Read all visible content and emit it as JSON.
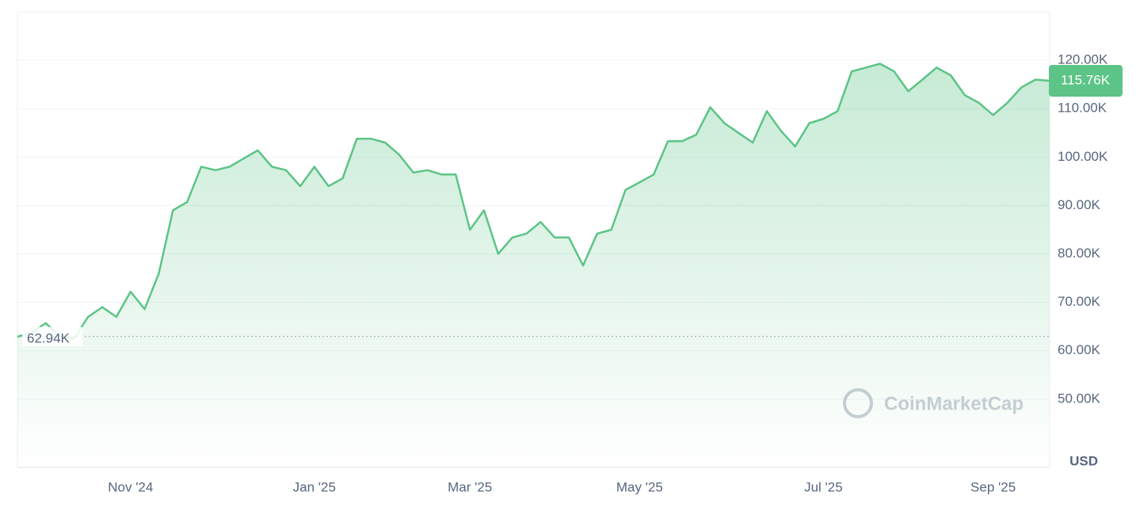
{
  "chart_data": {
    "type": "line",
    "categories": [
      null,
      null,
      null,
      null,
      null,
      null,
      null,
      null,
      "Nov '24",
      null,
      null,
      null,
      null,
      null,
      null,
      null,
      null,
      null,
      null,
      null,
      null,
      "Jan '25",
      null,
      null,
      null,
      null,
      null,
      null,
      null,
      null,
      null,
      null,
      "Mar '25",
      null,
      null,
      null,
      null,
      null,
      null,
      null,
      null,
      null,
      null,
      null,
      "May '25",
      null,
      null,
      null,
      null,
      null,
      null,
      null,
      null,
      null,
      null,
      null,
      null,
      "Jul '25",
      null,
      null,
      null,
      null,
      null,
      null,
      null,
      null,
      null,
      null,
      null,
      "Sep '25",
      null,
      null,
      null,
      null
    ],
    "series": [
      {
        "color": "#5cc486",
        "values": [
          62900,
          63700,
          65700,
          63000,
          62500,
          67000,
          69000,
          67000,
          72200,
          68600,
          76000,
          89000,
          90700,
          98000,
          97300,
          98000,
          99700,
          101400,
          98000,
          97300,
          94000,
          98000,
          94000,
          95600,
          103800,
          103800,
          103000,
          100500,
          96800,
          97300,
          96400,
          96400,
          85000,
          89000,
          80000,
          83400,
          84200,
          86600,
          83400,
          83400,
          77600,
          84200,
          85000,
          93200,
          94800,
          96400,
          103300,
          103300,
          104600,
          110300,
          107000,
          105000,
          103000,
          109500,
          105400,
          102200,
          107000,
          107900,
          109500,
          117700,
          118500,
          119300,
          117700,
          113600,
          116000,
          118500,
          116900,
          112800,
          111200,
          108700,
          111200,
          114400,
          116000,
          115760
        ],
        "value_labels": [
          null,
          null,
          null,
          null,
          null,
          null,
          null,
          null,
          null,
          null,
          null,
          null,
          null,
          null,
          null,
          null,
          null,
          null,
          null,
          null,
          null,
          null,
          null,
          null,
          null,
          null,
          null,
          null,
          null,
          null,
          null,
          null,
          null,
          null,
          null,
          null,
          null,
          null,
          null,
          null,
          null,
          null,
          null,
          null,
          null,
          null,
          null,
          null,
          null,
          null,
          null,
          null,
          null,
          null,
          null,
          null,
          null,
          null,
          null,
          null,
          null,
          null,
          null,
          null,
          null,
          null,
          null,
          null,
          null,
          null,
          null,
          null,
          null,
          "115.76K"
        ]
      }
    ],
    "ylim": [
      35900,
      130000
    ],
    "yticks": [
      {
        "value": 50000,
        "label": "50.00K"
      },
      {
        "value": 60000,
        "label": "60.00K"
      },
      {
        "value": 70000,
        "label": "70.00K"
      },
      {
        "value": 80000,
        "label": "80.00K"
      },
      {
        "value": 90000,
        "label": "90.00K"
      },
      {
        "value": 100000,
        "label": "100.00K"
      },
      {
        "value": 110000,
        "label": "110.00K"
      },
      {
        "value": 120000,
        "label": "120.00K"
      }
    ],
    "reference_line": {
      "value": 62940,
      "label": "62.94K"
    },
    "y_unit": "USD",
    "watermark": "CoinMarketCap",
    "grid": true
  }
}
